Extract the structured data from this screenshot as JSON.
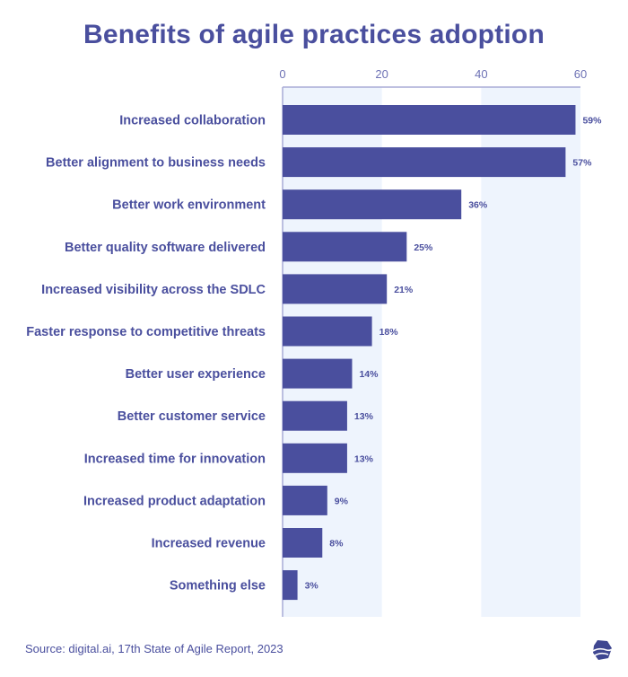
{
  "chart_data": {
    "type": "bar",
    "orientation": "horizontal",
    "title": "Benefits of agile practices adoption",
    "categories": [
      "Increased collaboration",
      "Better alignment to business needs",
      "Better work environment",
      "Better quality software delivered",
      "Increased visibility across the SDLC",
      "Faster response to competitive threats",
      "Better user experience",
      "Better customer service",
      "Increased time for innovation",
      "Increased product adaptation",
      "Increased revenue",
      "Something else"
    ],
    "values": [
      59,
      57,
      36,
      25,
      21,
      18,
      14,
      13,
      13,
      9,
      8,
      3
    ],
    "value_labels": [
      "59%",
      "57%",
      "36%",
      "25%",
      "21%",
      "18%",
      "14%",
      "13%",
      "13%",
      "9%",
      "8%",
      "3%"
    ],
    "xlim": [
      0,
      60
    ],
    "xticks": [
      0,
      20,
      40,
      60
    ],
    "xtick_labels": [
      "0",
      "20",
      "40",
      "60"
    ],
    "xaxis_position": "top",
    "xlabel": "",
    "ylabel": "",
    "colors": {
      "bar": "#4a4f9e",
      "band": "#eef4fd",
      "text": "#4a4f9e",
      "axis": "#a9acd6"
    }
  },
  "footer": {
    "source": "Source: digital.ai, 17th State of Agile Report, 2023"
  },
  "logo_icon": "digital-ai-logo-icon"
}
